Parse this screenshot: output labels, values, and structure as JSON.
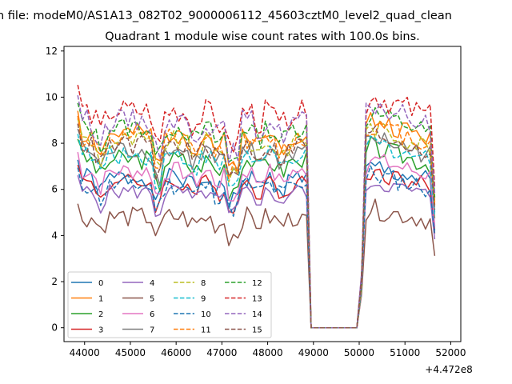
{
  "figure": {
    "suptitle": "n file: modeM0/AS1A13_082T02_9000006112_45603cztM0_level2_quad_clean"
  },
  "chart_data": {
    "type": "line",
    "title": "Quadrant 1 module wise count rates with 100.0s bins.",
    "xlabel": "",
    "ylabel": "",
    "x_offset_label": "+4.472e8",
    "xlim": [
      43550,
      52220
    ],
    "ylim": [
      -0.6,
      12.2
    ],
    "x_ticks": [
      44000,
      45000,
      46000,
      47000,
      48000,
      49000,
      50000,
      51000,
      52000
    ],
    "x_tick_labels": [
      "44000",
      "45000",
      "46000",
      "47000",
      "48000",
      "49000",
      "50000",
      "51000",
      "52000"
    ],
    "y_ticks": [
      0,
      2,
      4,
      6,
      8,
      10,
      12
    ],
    "y_tick_labels": [
      "0",
      "2",
      "4",
      "6",
      "8",
      "10",
      "12"
    ],
    "legend": {
      "placement": "lower-left",
      "columns": 4
    },
    "segments": [
      {
        "x_start": 43850,
        "x_end": 48850,
        "step": 100
      },
      {
        "x_start": 48950,
        "x_end": 49950,
        "step": 100
      },
      {
        "x_start": 50050,
        "x_end": 51650,
        "step": 100
      }
    ],
    "series": [
      {
        "name": "0",
        "color": "#1f77b4",
        "dash": "solid",
        "base": 6.5,
        "amp": 0.45,
        "seed": 1
      },
      {
        "name": "1",
        "color": "#ff7f0e",
        "dash": "solid",
        "base": 8.4,
        "amp": 0.45,
        "seed": 2
      },
      {
        "name": "2",
        "color": "#2ca02c",
        "dash": "solid",
        "base": 7.3,
        "amp": 0.45,
        "seed": 3
      },
      {
        "name": "3",
        "color": "#d62728",
        "dash": "solid",
        "base": 6.3,
        "amp": 0.4,
        "seed": 4
      },
      {
        "name": "4",
        "color": "#9467bd",
        "dash": "solid",
        "base": 5.9,
        "amp": 0.35,
        "seed": 5
      },
      {
        "name": "5",
        "color": "#8c564b",
        "dash": "solid",
        "base": 4.8,
        "amp": 0.45,
        "seed": 6
      },
      {
        "name": "6",
        "color": "#e377c2",
        "dash": "solid",
        "base": 6.8,
        "amp": 0.4,
        "seed": 7
      },
      {
        "name": "7",
        "color": "#7f7f7f",
        "dash": "solid",
        "base": 7.7,
        "amp": 0.45,
        "seed": 8
      },
      {
        "name": "8",
        "color": "#bcbd22",
        "dash": "dashed",
        "base": 8.1,
        "amp": 0.45,
        "seed": 9
      },
      {
        "name": "9",
        "color": "#17becf",
        "dash": "dashed",
        "base": 7.5,
        "amp": 0.45,
        "seed": 10
      },
      {
        "name": "10",
        "color": "#1f77b4",
        "dash": "dashed",
        "base": 6.2,
        "amp": 0.45,
        "seed": 11
      },
      {
        "name": "11",
        "color": "#ff7f0e",
        "dash": "dashed",
        "base": 8.2,
        "amp": 0.45,
        "seed": 12
      },
      {
        "name": "12",
        "color": "#2ca02c",
        "dash": "dashed",
        "base": 8.7,
        "amp": 0.45,
        "seed": 13
      },
      {
        "name": "13",
        "color": "#d62728",
        "dash": "dashed",
        "base": 9.4,
        "amp": 0.55,
        "seed": 14
      },
      {
        "name": "14",
        "color": "#9467bd",
        "dash": "dashed",
        "base": 9.0,
        "amp": 0.5,
        "seed": 15
      },
      {
        "name": "15",
        "color": "#8c564b",
        "dash": "dashed",
        "base": 7.9,
        "amp": 0.45,
        "seed": 16
      }
    ]
  }
}
